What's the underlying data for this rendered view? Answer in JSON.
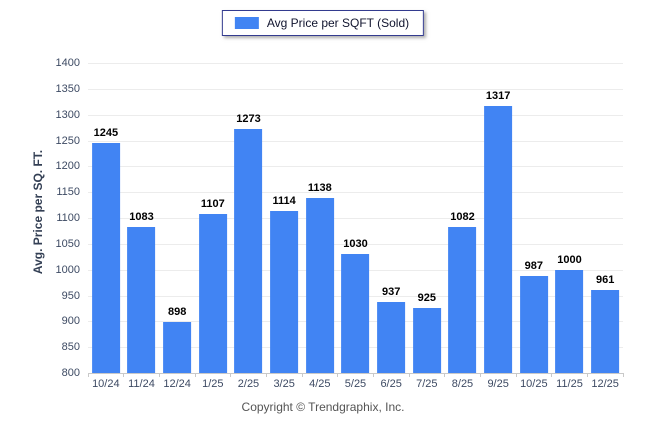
{
  "chart_data": {
    "type": "bar",
    "categories": [
      "10/24",
      "11/24",
      "12/24",
      "1/25",
      "2/25",
      "3/25",
      "4/25",
      "5/25",
      "6/25",
      "7/25",
      "8/25",
      "9/25",
      "10/25",
      "11/25",
      "12/25"
    ],
    "values": [
      1245,
      1083,
      898,
      1107,
      1273,
      1114,
      1138,
      1030,
      937,
      925,
      1082,
      1317,
      987,
      1000,
      961
    ],
    "title": "",
    "xlabel": "",
    "ylabel": "Avg. Price per SQ. FT.",
    "ylim": [
      800,
      1400
    ],
    "ytick_step": 50,
    "grid": true,
    "legend": {
      "label": "Avg Price per SQFT (Sold)",
      "position": "top"
    },
    "bar_color": "#4184F3"
  },
  "colors": {
    "bar": "#4184F3",
    "gridline": "#ececec",
    "baseline": "#c9c9c9",
    "tick_text": "#3d4a63",
    "legend_border": "#333b8f"
  },
  "footer": {
    "copyright": "Copyright © Trendgraphix, Inc."
  }
}
